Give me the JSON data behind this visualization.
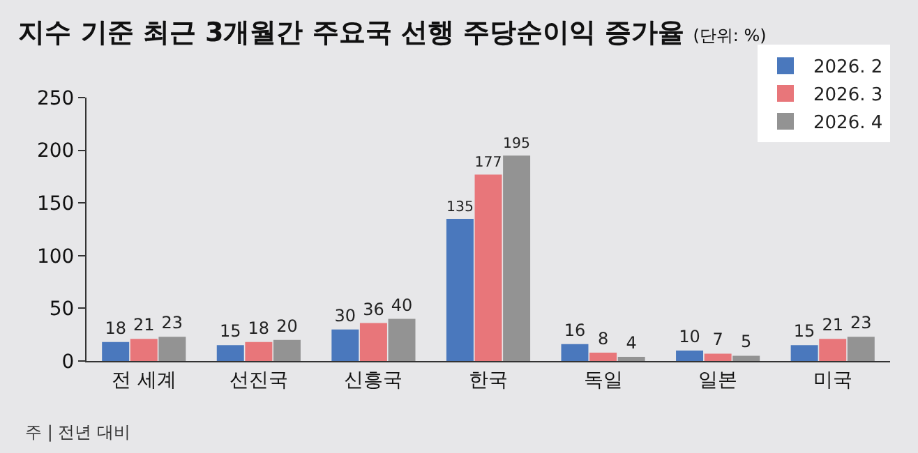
{
  "chart_data": {
    "type": "bar",
    "title": "지수 기준 최근 3개월간 주요국 선행 주당순이익 증가율",
    "subtitle": "(단위: %)",
    "categories": [
      "전 세계",
      "선진국",
      "신흥국",
      "한국",
      "독일",
      "일본",
      "미국"
    ],
    "series": [
      {
        "name": "2026. 2",
        "color": "#4a78bd",
        "values": [
          18,
          15,
          30,
          135,
          16,
          10,
          15
        ]
      },
      {
        "name": "2026. 3",
        "color": "#e8767a",
        "values": [
          21,
          18,
          36,
          177,
          8,
          7,
          21
        ]
      },
      {
        "name": "2026. 4",
        "color": "#939393",
        "values": [
          23,
          20,
          40,
          195,
          4,
          5,
          23
        ]
      }
    ],
    "ylim": [
      0,
      250
    ],
    "yticks": [
      0,
      50,
      100,
      150,
      200,
      250
    ],
    "grid": false,
    "legend": "top right",
    "data_labels": true,
    "annotations": [
      "주 | 전년 대비"
    ]
  }
}
